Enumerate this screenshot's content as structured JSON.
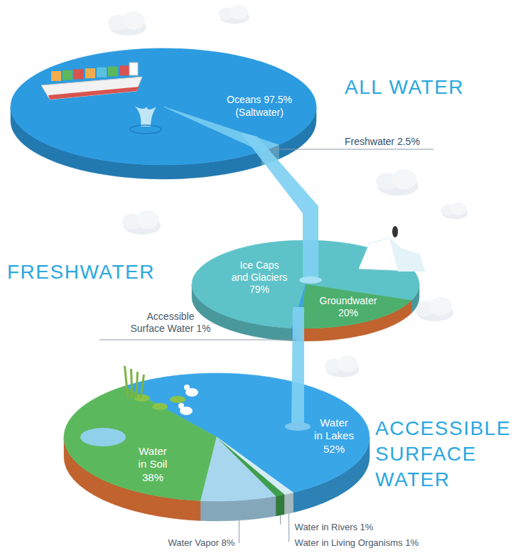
{
  "chart_data": [
    {
      "type": "pie",
      "title": "ALL WATER",
      "categories": [
        "Oceans",
        "Freshwater"
      ],
      "values": [
        97.5,
        2.5
      ],
      "value_labels": [
        "97.5%",
        "2.5%"
      ],
      "annotations": [
        "(Saltwater)"
      ],
      "colors": [
        "#2c9be0",
        "#70c8ef"
      ],
      "data_labels": true
    },
    {
      "type": "pie",
      "title": "FRESHWATER",
      "categories": [
        "Ice Caps and Glaciers",
        "Groundwater",
        "Accessible Surface Water"
      ],
      "values": [
        79,
        20,
        1
      ],
      "value_labels": [
        "79%",
        "20%",
        "1%"
      ],
      "colors": [
        "#5ec3c8",
        "#4caf6e",
        "#3aa2e3"
      ],
      "data_labels": true
    },
    {
      "type": "pie",
      "title": "ACCESSIBLE SURFACE WATER",
      "categories": [
        "Water in Lakes",
        "Water in Soil",
        "Water Vapor",
        "Water in Rivers",
        "Water in Living Organisms"
      ],
      "values": [
        52,
        38,
        8,
        1,
        1
      ],
      "value_labels": [
        "52%",
        "38%",
        "8%",
        "1%",
        "1%"
      ],
      "colors": [
        "#39a6e8",
        "#5cb85c",
        "#a9d6ef",
        "#3f9e4d",
        "#d4ecf4"
      ],
      "data_labels": true
    }
  ]
}
